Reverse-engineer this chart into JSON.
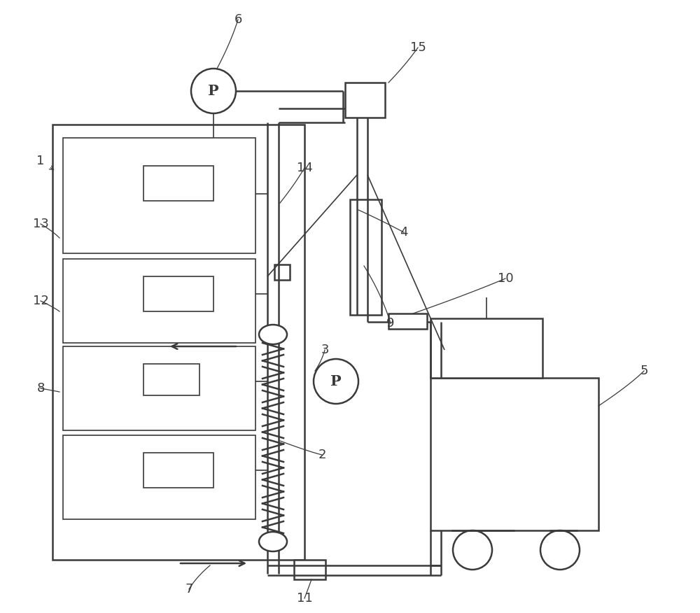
{
  "bg_color": "#ffffff",
  "lc": "#3a3a3a",
  "lw": 1.8,
  "tlw": 1.2
}
